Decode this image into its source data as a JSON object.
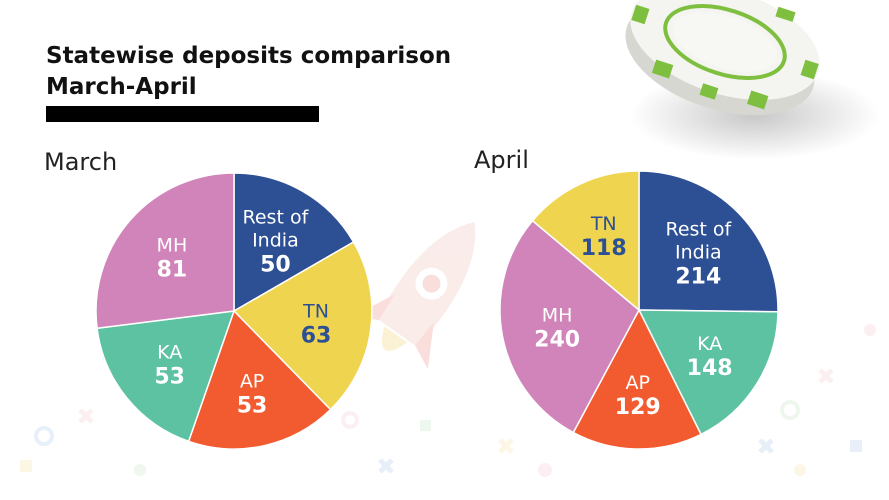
{
  "title": {
    "line1": "Statewise deposits comparison",
    "line2": "March-April"
  },
  "colors": {
    "Rest of India": "#2d4f94",
    "TN": "#efd44f",
    "AP": "#f25a2f",
    "KA": "#5dc2a2",
    "MH": "#d084b9",
    "label_dark": "#2d4f94",
    "label_light": "#ffffff",
    "chip_green": "#7fbf3f",
    "rocket": "#f2c9c3"
  },
  "chart_data": [
    {
      "type": "pie",
      "title": "March",
      "slices": [
        {
          "label": "Rest of India",
          "value": 50
        },
        {
          "label": "TN",
          "value": 63
        },
        {
          "label": "AP",
          "value": 53
        },
        {
          "label": "KA",
          "value": 53
        },
        {
          "label": "MH",
          "value": 81
        }
      ]
    },
    {
      "type": "pie",
      "title": "April",
      "slices": [
        {
          "label": "Rest of India",
          "value": 214
        },
        {
          "label": "KA",
          "value": 148
        },
        {
          "label": "AP",
          "value": 129
        },
        {
          "label": "MH",
          "value": 240
        },
        {
          "label": "TN",
          "value": 118
        }
      ]
    }
  ]
}
